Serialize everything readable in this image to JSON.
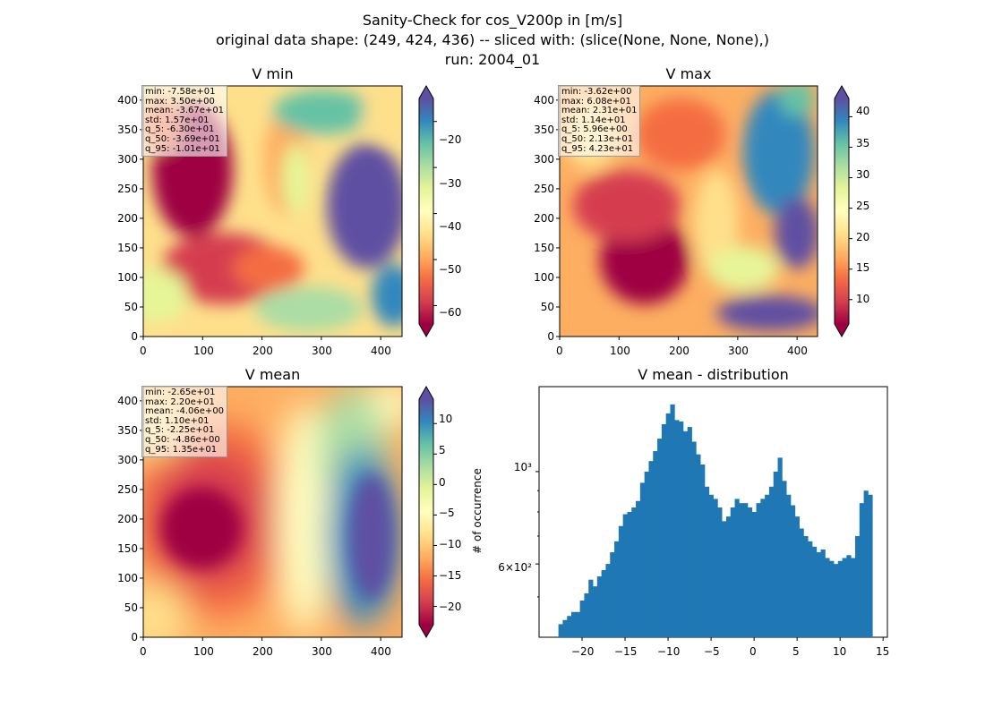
{
  "figure": {
    "title_line1": "Sanity-Check for cos_V200p in [m/s]",
    "title_line2": "original data shape: (249, 424, 436) -- sliced with: (slice(None, None, None),)",
    "title_line3": "run: 2004_01"
  },
  "colors": {
    "hist_bar": "#1f77b4",
    "colormap": "Spectral"
  },
  "panels": {
    "vmin": {
      "title": "V min",
      "stats": [
        "min: -7.58e+01",
        "max: 3.50e+00",
        "mean: -3.67e+01",
        "std: 1.57e+01",
        "q_5: -6.30e+01",
        "q_50: -3.69e+01",
        "q_95: -1.01e+01"
      ],
      "colorbar_ticks": [
        "−20",
        "−30",
        "−40",
        "−50",
        "−60"
      ],
      "colorbar_range": [
        -64,
        -15
      ]
    },
    "vmax": {
      "title": "V max",
      "stats": [
        "min: -3.62e+00",
        "max: 6.08e+01",
        "mean: 2.31e+01",
        "std: 1.14e+01",
        "q_5: 5.96e+00",
        "q_50: 2.13e+01",
        "q_95: 4.23e+01"
      ],
      "colorbar_ticks": [
        "40",
        "35",
        "30",
        "25",
        "20",
        "15",
        "10"
      ],
      "colorbar_range": [
        6,
        43
      ]
    },
    "vmean": {
      "title": "V mean",
      "stats": [
        "min: -2.65e+01",
        "max: 2.20e+01",
        "mean: -4.06e+00",
        "std: 1.10e+01",
        "q_5: -2.25e+01",
        "q_50: -4.86e+00",
        "q_95: 1.35e+01"
      ],
      "colorbar_ticks": [
        "10",
        "5",
        "0",
        "−5",
        "−10",
        "−15",
        "−20"
      ],
      "colorbar_range": [
        -23,
        14
      ]
    },
    "map_axes": {
      "x_ticks": [
        "0",
        "100",
        "200",
        "300",
        "400"
      ],
      "y_ticks": [
        "400",
        "350",
        "300",
        "250",
        "200",
        "150",
        "100",
        "50",
        "0"
      ]
    }
  },
  "chart_data": {
    "type": "bar",
    "title": "V mean - distribution",
    "xlabel": "",
    "ylabel": "# of occurrence",
    "y_scale": "log",
    "xlim": [
      -25,
      15.5
    ],
    "ylim": [
      400,
      1600
    ],
    "x_tick_labels": [
      "−20",
      "−15",
      "−10",
      "−5",
      "0",
      "5",
      "10",
      "15"
    ],
    "y_tick_labels": [
      "10³",
      "6×10²"
    ],
    "series": [
      {
        "x": [
          -22.5,
          -22,
          -21.5,
          -21,
          -20.5,
          -20,
          -19.5,
          -19,
          -18.5,
          -18,
          -17.5,
          -17,
          -16.5,
          -16,
          -15.5,
          -15,
          -14.5,
          -14,
          -13.5,
          -13,
          -12.5,
          -12,
          -11.5,
          -11,
          -10.5,
          -10,
          -9.5,
          -9,
          -8.5,
          -8,
          -7.5,
          -7,
          -6.5,
          -6,
          -5.5,
          -5,
          -4.5,
          -4,
          -3.5,
          -3,
          -2.5,
          -2,
          -1.5,
          -1,
          -0.5,
          0,
          0.5,
          1,
          1.5,
          2,
          2.5,
          3,
          3.5,
          4,
          4.5,
          5,
          5.5,
          6,
          6.5,
          7,
          7.5,
          8,
          8.5,
          9,
          9.5,
          10,
          10.5,
          11,
          11.5,
          12,
          12.5,
          13,
          13.5
        ],
        "values": [
          430,
          440,
          450,
          460,
          460,
          490,
          510,
          550,
          530,
          560,
          580,
          600,
          640,
          680,
          740,
          790,
          800,
          820,
          850,
          940,
          1000,
          1060,
          1120,
          1200,
          1300,
          1380,
          1450,
          1330,
          1320,
          1250,
          1280,
          1180,
          1100,
          1040,
          920,
          880,
          860,
          820,
          760,
          780,
          820,
          860,
          840,
          840,
          820,
          800,
          840,
          860,
          880,
          920,
          1000,
          1080,
          950,
          880,
          830,
          780,
          730,
          700,
          680,
          660,
          640,
          650,
          620,
          610,
          600,
          610,
          620,
          630,
          620,
          700,
          840,
          900,
          880
        ]
      }
    ]
  }
}
